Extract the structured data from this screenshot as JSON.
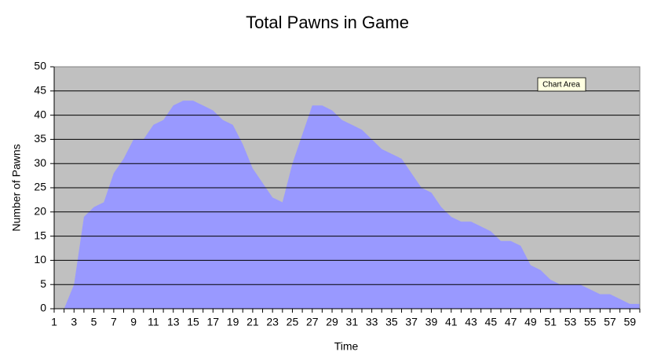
{
  "chart_data": {
    "type": "area",
    "title": "Total Pawns in Game",
    "x_label": "Time",
    "y_label": "Number of Pawns",
    "categories": [
      1,
      null,
      3,
      null,
      5,
      null,
      7,
      null,
      9,
      null,
      11,
      null,
      13,
      null,
      15,
      null,
      17,
      null,
      19,
      null,
      21,
      null,
      23,
      null,
      25,
      null,
      27,
      null,
      29,
      null,
      31,
      null,
      33,
      null,
      35,
      null,
      37,
      null,
      39,
      null,
      41,
      null,
      43,
      null,
      45,
      null,
      47,
      null,
      49,
      null,
      51,
      null,
      53,
      null,
      55,
      null,
      57,
      null,
      59,
      null
    ],
    "values": [
      0,
      0,
      5,
      19,
      21,
      22,
      28,
      31,
      35,
      35,
      38,
      39,
      42,
      43,
      43,
      42,
      41,
      39,
      38,
      34,
      29,
      26,
      23,
      22,
      30,
      36,
      42,
      42,
      41,
      39,
      38,
      37,
      35,
      33,
      32,
      31,
      28,
      25,
      24,
      21,
      19,
      18,
      18,
      17,
      16,
      14,
      14,
      13,
      9,
      8,
      6,
      5,
      5,
      5,
      4,
      3,
      3,
      2,
      1,
      1
    ],
    "color": "#9999ff",
    "plot_background": "#c0c0c0",
    "ylim": [
      0,
      50
    ],
    "yticks": [
      0,
      5,
      10,
      15,
      20,
      25,
      30,
      35,
      40,
      45,
      50
    ],
    "grid": true,
    "tooltip": "Chart Area"
  }
}
